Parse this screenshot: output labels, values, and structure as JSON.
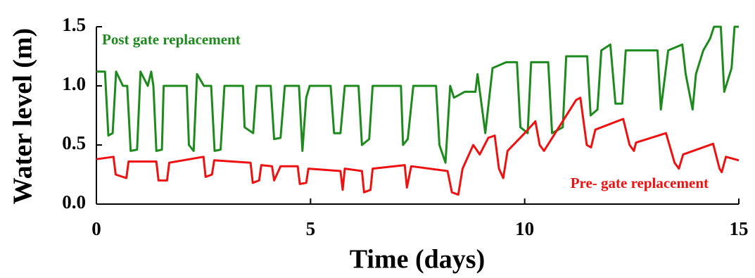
{
  "chart_data": {
    "type": "line",
    "x_label": "Time (days)",
    "y_label": "Water level (m)",
    "xlim": [
      0,
      15
    ],
    "xticks": [
      0,
      5,
      10,
      15
    ],
    "ylim": [
      0,
      1.5
    ],
    "yticks": [
      {
        "value": 0,
        "label": "0.0"
      },
      0.5,
      {
        "value": 1,
        "label": "1.0"
      },
      1.5
    ],
    "series": [
      {
        "name": "Post gate replacement",
        "color": "#1e8a1e",
        "x": [
          0,
          0.2,
          0.28,
          0.38,
          0.46,
          0.62,
          0.72,
          0.8,
          0.95,
          1.03,
          1.2,
          1.28,
          1.33,
          1.4,
          1.53,
          1.57,
          2.11,
          2.16,
          2.27,
          2.35,
          2.51,
          2.68,
          2.76,
          2.9,
          2.99,
          3.42,
          3.46,
          3.66,
          3.74,
          4.07,
          4.15,
          4.3,
          4.4,
          4.73,
          4.81,
          4.9,
          4.98,
          5.47,
          5.55,
          5.7,
          5.8,
          6.12,
          6.2,
          6.37,
          6.45,
          7.11,
          7.16,
          7.27,
          7.4,
          7.93,
          8.01,
          8.15,
          8.26,
          8.35,
          8.6,
          8.85,
          8.9,
          9.08,
          9.25,
          9.57,
          9.82,
          9.9,
          10.07,
          10.15,
          10.55,
          10.64,
          10.89,
          10.97,
          11.46,
          11.54,
          11.7,
          11.79,
          12.0,
          12.12,
          12.28,
          12.36,
          13.1,
          13.18,
          13.35,
          13.68,
          13.76,
          13.92,
          14.0,
          14.17,
          14.33,
          14.42,
          14.58,
          14.66,
          14.83,
          14.9,
          15
        ],
        "values": [
          1.12,
          1.12,
          0.58,
          0.6,
          1.12,
          1.0,
          1.0,
          0.45,
          0.46,
          1.12,
          1.0,
          1.12,
          1.0,
          0.45,
          0.46,
          1.0,
          1.0,
          0.5,
          0.45,
          1.1,
          1.0,
          1.0,
          0.45,
          0.46,
          1.0,
          1.0,
          0.65,
          0.6,
          1.0,
          1.0,
          0.55,
          0.56,
          1.0,
          1.0,
          0.45,
          0.9,
          1.0,
          1.0,
          0.6,
          0.6,
          1.0,
          1.0,
          0.5,
          0.55,
          1.0,
          1.0,
          0.5,
          0.55,
          1.0,
          1.0,
          0.5,
          0.35,
          1.0,
          0.9,
          0.95,
          0.95,
          1.1,
          0.6,
          1.15,
          1.2,
          1.2,
          0.65,
          0.6,
          1.2,
          1.2,
          0.6,
          0.65,
          1.25,
          1.25,
          0.75,
          0.8,
          1.3,
          1.35,
          0.85,
          0.85,
          1.3,
          1.3,
          0.8,
          1.3,
          1.35,
          1.1,
          0.8,
          1.1,
          1.3,
          1.4,
          1.5,
          1.5,
          0.95,
          1.15,
          1.5,
          1.5
        ]
      },
      {
        "name": "Pre- gate replacement",
        "color": "#ee1111",
        "x": [
          0,
          0.4,
          0.45,
          0.7,
          0.75,
          1.4,
          1.45,
          1.65,
          1.7,
          2.5,
          2.55,
          2.7,
          2.75,
          3.6,
          3.65,
          3.8,
          3.85,
          4.1,
          4.15,
          4.3,
          4.7,
          4.75,
          4.9,
          4.95,
          5.7,
          5.75,
          5.8,
          6.2,
          6.25,
          6.4,
          6.45,
          7.2,
          7.25,
          7.35,
          8.2,
          8.3,
          8.45,
          8.55,
          8.8,
          8.95,
          9.15,
          9.3,
          9.4,
          9.5,
          9.6,
          10.0,
          10.25,
          10.35,
          10.45,
          11.2,
          11.3,
          11.45,
          11.55,
          11.65,
          12.3,
          12.45,
          12.55,
          12.6,
          13.3,
          13.5,
          13.6,
          13.7,
          14.4,
          14.55,
          14.6,
          14.7,
          15
        ],
        "values": [
          0.38,
          0.4,
          0.25,
          0.22,
          0.36,
          0.36,
          0.2,
          0.2,
          0.35,
          0.4,
          0.23,
          0.25,
          0.37,
          0.35,
          0.18,
          0.2,
          0.33,
          0.32,
          0.2,
          0.32,
          0.32,
          0.17,
          0.18,
          0.3,
          0.28,
          0.12,
          0.3,
          0.28,
          0.1,
          0.12,
          0.3,
          0.33,
          0.14,
          0.32,
          0.28,
          0.1,
          0.08,
          0.3,
          0.5,
          0.42,
          0.56,
          0.58,
          0.3,
          0.22,
          0.45,
          0.6,
          0.7,
          0.5,
          0.45,
          0.88,
          0.9,
          0.5,
          0.48,
          0.63,
          0.72,
          0.5,
          0.45,
          0.52,
          0.6,
          0.35,
          0.3,
          0.42,
          0.51,
          0.3,
          0.27,
          0.4,
          0.37
        ]
      }
    ]
  }
}
